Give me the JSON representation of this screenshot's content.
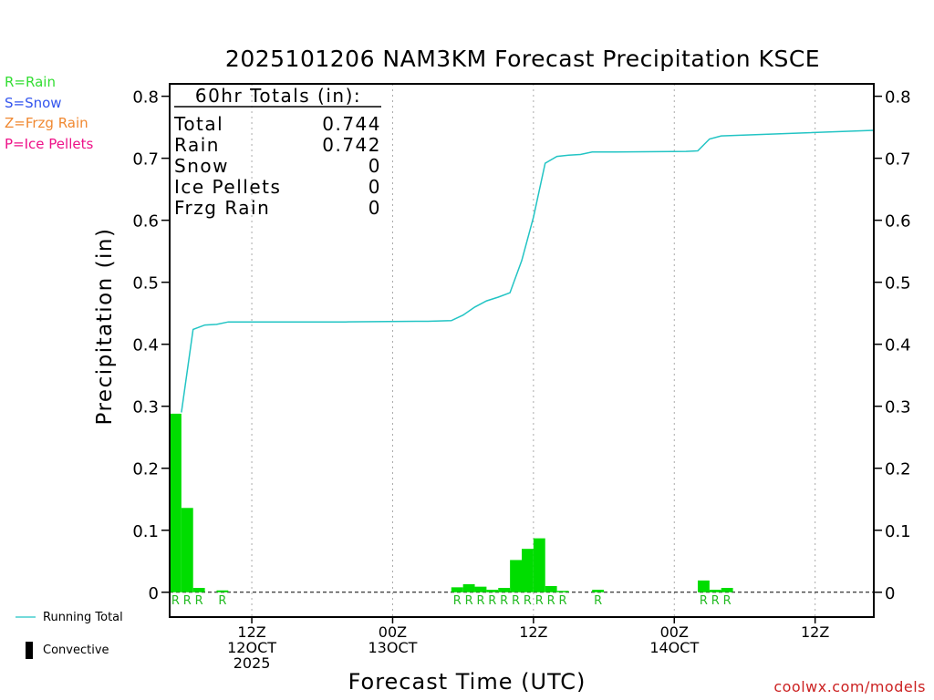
{
  "title": "2025101206 NAM3KM Forecast Precipitation KSCE",
  "xlabel": "Forecast Time (UTC)",
  "ylabel": "Precipitation (in)",
  "credit": "coolwx.com/models",
  "key": [
    {
      "text": "R=Rain",
      "color": "#33dd33"
    },
    {
      "text": "S=Snow",
      "color": "#3355ee"
    },
    {
      "text": "Z=Frzg Rain",
      "color": "#f08830"
    },
    {
      "text": "P=Ice Pellets",
      "color": "#ee1188"
    }
  ],
  "legend": {
    "running_total": "Running Total",
    "convective": "Convective",
    "running_total_color": "#22c4c4",
    "convective_color": "#000000"
  },
  "totals": {
    "header": "60hr Totals (in):",
    "rows": [
      {
        "label": "Total",
        "value": "0.744"
      },
      {
        "label": "Rain",
        "value": "0.742"
      },
      {
        "label": "Snow",
        "value": "0"
      },
      {
        "label": "Ice Pellets",
        "value": "0"
      },
      {
        "label": "Frzg Rain",
        "value": "0"
      }
    ]
  },
  "chart_data": {
    "type": "bar",
    "x_start": "2025-10-12 06Z",
    "x_step_hours": 1,
    "ylim": [
      -0.04,
      0.82
    ],
    "yticks": [
      "0",
      "0.1",
      "0.2",
      "0.3",
      "0.4",
      "0.5",
      "0.6",
      "0.7",
      "0.8"
    ],
    "ytick_values": [
      0,
      0.1,
      0.2,
      0.3,
      0.4,
      0.5,
      0.6,
      0.7,
      0.8
    ],
    "xticks": [
      {
        "hour": 7,
        "lines": [
          "12Z",
          "12OCT",
          "2025"
        ]
      },
      {
        "hour": 19,
        "lines": [
          "00Z",
          "13OCT"
        ]
      },
      {
        "hour": 31,
        "lines": [
          "12Z"
        ]
      },
      {
        "hour": 43,
        "lines": [
          "00Z",
          "14OCT"
        ]
      },
      {
        "hour": 55,
        "lines": [
          "12Z"
        ]
      }
    ],
    "bar_color": "#00dd00",
    "type_label_color": "#22bb22",
    "bars": [
      {
        "hour": 1,
        "value": 0.288,
        "type": "R"
      },
      {
        "hour": 2,
        "value": 0.136,
        "type": "R"
      },
      {
        "hour": 3,
        "value": 0.007,
        "type": "R"
      },
      {
        "hour": 5,
        "value": 0.003,
        "type": "R"
      },
      {
        "hour": 25,
        "value": 0.008,
        "type": "R"
      },
      {
        "hour": 26,
        "value": 0.013,
        "type": "R"
      },
      {
        "hour": 27,
        "value": 0.009,
        "type": "R"
      },
      {
        "hour": 28,
        "value": 0.004,
        "type": "R"
      },
      {
        "hour": 29,
        "value": 0.007,
        "type": "R"
      },
      {
        "hour": 30,
        "value": 0.052,
        "type": "R"
      },
      {
        "hour": 31,
        "value": 0.07,
        "type": "R"
      },
      {
        "hour": 32,
        "value": 0.087,
        "type": "R"
      },
      {
        "hour": 33,
        "value": 0.01,
        "type": "R"
      },
      {
        "hour": 34,
        "value": 0.001,
        "type": "R"
      },
      {
        "hour": 37,
        "value": 0.004,
        "type": "R"
      },
      {
        "hour": 46,
        "value": 0.019,
        "type": "R"
      },
      {
        "hour": 47,
        "value": 0.004,
        "type": "R"
      },
      {
        "hour": 48,
        "value": 0.007,
        "type": "R"
      }
    ],
    "running_total": {
      "name": "Running Total",
      "x": [
        1,
        2,
        3,
        4,
        5,
        6,
        15,
        21,
        22,
        24,
        25,
        26,
        27,
        28,
        29,
        30,
        31,
        32,
        33,
        34,
        35,
        36,
        37,
        38,
        44,
        45,
        46,
        47,
        60
      ],
      "y": [
        0.29,
        0.424,
        0.431,
        0.432,
        0.436,
        0.436,
        0.436,
        0.437,
        0.437,
        0.438,
        0.447,
        0.46,
        0.47,
        0.476,
        0.483,
        0.535,
        0.605,
        0.692,
        0.703,
        0.705,
        0.706,
        0.71,
        0.71,
        0.71,
        0.711,
        0.712,
        0.731,
        0.736,
        0.745
      ]
    }
  }
}
